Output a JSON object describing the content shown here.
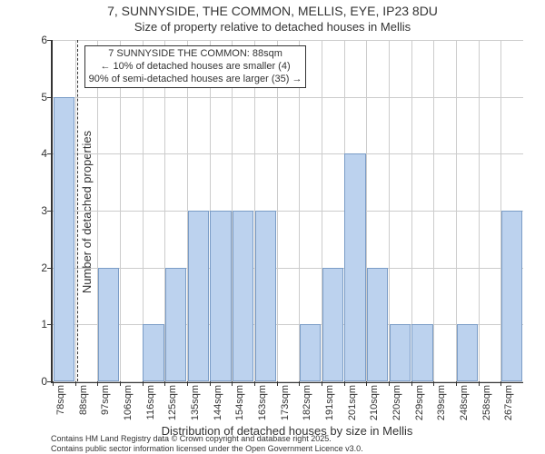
{
  "title": "7, SUNNYSIDE, THE COMMON, MELLIS, EYE, IP23 8DU",
  "subtitle": "Size of property relative to detached houses in Mellis",
  "chart": {
    "type": "histogram",
    "ylabel": "Number of detached properties",
    "xlabel": "Distribution of detached houses by size in Mellis",
    "ylim": [
      0,
      6
    ],
    "yticks": [
      0,
      1,
      2,
      3,
      4,
      5,
      6
    ],
    "bar_color": "#bcd2ee",
    "bar_border_color": "#7a9cc6",
    "grid_color": "#cccccc",
    "axis_color": "#333333",
    "background": "#ffffff",
    "label_fontsize": 13,
    "tick_fontsize": 12,
    "xtick_fontsize": 11,
    "xtick_rotation": -90,
    "categories": [
      "78sqm",
      "88sqm",
      "97sqm",
      "106sqm",
      "116sqm",
      "125sqm",
      "135sqm",
      "144sqm",
      "154sqm",
      "163sqm",
      "173sqm",
      "182sqm",
      "191sqm",
      "201sqm",
      "210sqm",
      "220sqm",
      "229sqm",
      "239sqm",
      "248sqm",
      "258sqm",
      "267sqm"
    ],
    "values": [
      5,
      0,
      2,
      0,
      1,
      2,
      3,
      3,
      3,
      3,
      0,
      1,
      2,
      4,
      2,
      1,
      1,
      0,
      1,
      0,
      3
    ],
    "bar_width_ratio": 0.94,
    "marker": {
      "category_index_between": [
        1,
        2
      ],
      "style": "dashed",
      "color": "#333333"
    }
  },
  "annotation": {
    "lines": [
      "7 SUNNYSIDE THE COMMON: 88sqm",
      "← 10% of detached houses are smaller (4)",
      "90% of semi-detached houses are larger (35) →"
    ],
    "border_color": "#333333",
    "background": "#ffffff",
    "fontsize": 11
  },
  "footer": {
    "line1": "Contains HM Land Registry data © Crown copyright and database right 2025.",
    "line2": "Contains public sector information licensed under the Open Government Licence v3.0."
  }
}
